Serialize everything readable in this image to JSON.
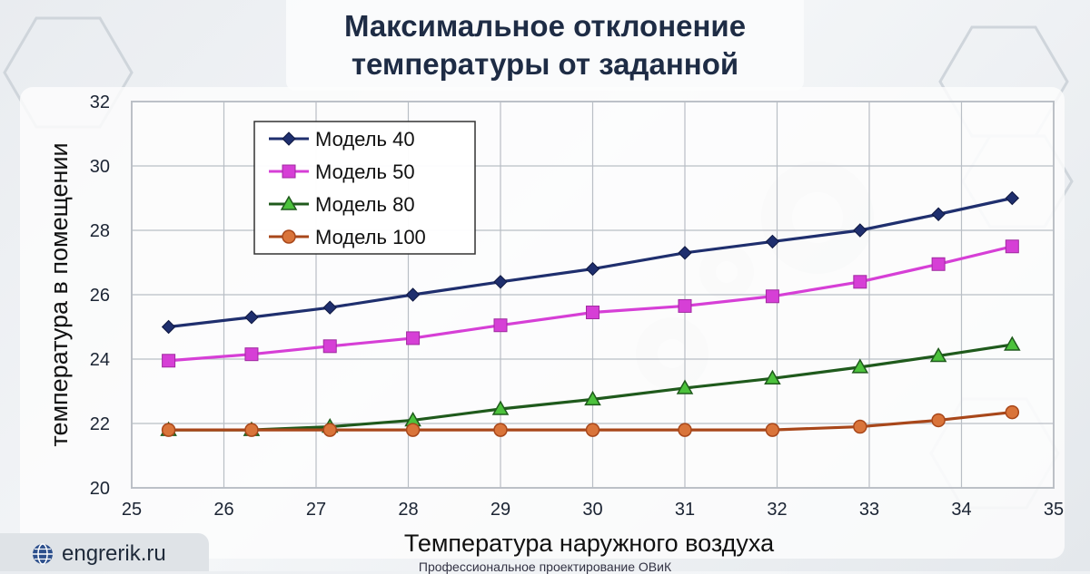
{
  "site": {
    "name": "engrerik.ru",
    "icon": "globe-icon"
  },
  "footer": {
    "tagline": "Профессиональное проектирование ОВиК"
  },
  "chart_data": {
    "type": "line",
    "title_lines": [
      "Максимальное отклонение",
      "температуры от заданной"
    ],
    "xlabel": "Температура наружного воздуха",
    "ylabel": "температура в помещении",
    "xlim": [
      25,
      35
    ],
    "ylim": [
      20,
      32
    ],
    "xticks": [
      25,
      26,
      27,
      28,
      29,
      30,
      31,
      32,
      33,
      34,
      35
    ],
    "yticks": [
      20,
      22,
      24,
      26,
      28,
      30,
      32
    ],
    "grid": true,
    "legend_position": "top-left",
    "x": [
      25.4,
      26.3,
      27.15,
      28.05,
      29.0,
      30.0,
      31.0,
      31.95,
      32.9,
      33.75,
      34.55
    ],
    "series": [
      {
        "name": "Модель 40",
        "color": "#1f2f6e",
        "marker": "diamond",
        "values": [
          25.0,
          25.3,
          25.6,
          26.0,
          26.4,
          26.8,
          27.3,
          27.65,
          28.0,
          28.5,
          29.0
        ]
      },
      {
        "name": "Модель 50",
        "color": "#d63fd6",
        "marker": "square",
        "values": [
          23.95,
          24.15,
          24.4,
          24.65,
          25.05,
          25.45,
          25.65,
          25.95,
          26.4,
          26.95,
          27.5
        ]
      },
      {
        "name": "Модель 80",
        "color": "#1f5a1c",
        "marker": "triangle",
        "values": [
          21.8,
          21.8,
          21.9,
          22.1,
          22.45,
          22.75,
          23.1,
          23.4,
          23.75,
          24.1,
          24.45
        ]
      },
      {
        "name": "Модель 100",
        "color": "#a8471a",
        "marker": "circle",
        "values": [
          21.8,
          21.8,
          21.8,
          21.8,
          21.8,
          21.8,
          21.8,
          21.8,
          21.9,
          22.1,
          22.35
        ]
      }
    ]
  }
}
